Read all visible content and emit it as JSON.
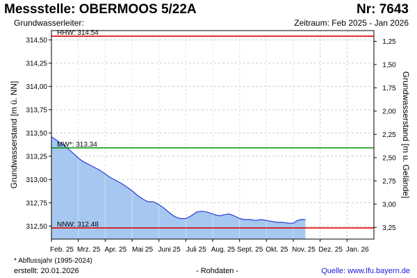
{
  "header": {
    "title": "Messstelle: OBERMOOS 5/22A",
    "number": "Nr: 7643",
    "aquifer_label": "Grundwasserleiter:",
    "period": "Zeitraum: Feb 2025 - Jan 2026"
  },
  "footer": {
    "footnote": "* Abflussjahr (1995-2024)",
    "created": "erstellt:  20.01.2026",
    "raw": "- Rohdaten -",
    "source": "Quelle:  www.lfu.bayern.de"
  },
  "colors": {
    "hhw": "#e00000",
    "mw": "#009000",
    "nnw": "#e00000",
    "fill": "#a6c8f0",
    "line": "#2a3ad8",
    "grid": "#cccccc"
  },
  "chart_data": {
    "type": "area",
    "ylabel": "Grundwasserstand [m ü. NN]",
    "y2label": "Grundwasserstand [m u. Gelände]",
    "ylim": [
      312.36,
      314.6
    ],
    "yticks": [
      "312,50",
      "312,75",
      "313,00",
      "313,25",
      "313,50",
      "313,75",
      "314,00",
      "314,25",
      "314,50"
    ],
    "y2ticks": [
      "1,25",
      "1,50",
      "1,75",
      "2,00",
      "2,25",
      "2,50",
      "2,75",
      "3,00",
      "3,25"
    ],
    "xlim": [
      0,
      12
    ],
    "xticks": [
      "Feb. 25",
      "Mrz. 25",
      "Apr. 25",
      "Mai 25",
      "Juni 25",
      "Juli 25",
      "Aug. 25",
      "Sept. 25",
      "Okt. 25",
      "Nov. 25",
      "Dez. 25",
      "Jan. 26"
    ],
    "grid": true,
    "reference_lines": [
      {
        "label": "HHW: 314.54",
        "value": 314.54,
        "color": "#e00000"
      },
      {
        "label": "MW*: 313.34",
        "value": 313.34,
        "color": "#009000"
      },
      {
        "label": "NNW: 312.48",
        "value": 312.48,
        "color": "#e00000"
      }
    ],
    "series": [
      {
        "x": [
          0.0,
          0.15,
          0.3,
          0.5,
          0.7,
          0.9,
          1.0,
          1.2,
          1.4,
          1.6,
          1.8,
          2.0,
          2.2,
          2.4,
          2.6,
          2.8,
          3.0,
          3.2,
          3.4,
          3.6,
          3.8,
          4.0,
          4.2,
          4.4,
          4.6,
          4.8,
          5.0,
          5.2,
          5.4,
          5.6,
          5.8,
          6.0,
          6.1,
          6.25,
          6.4,
          6.6,
          6.8,
          7.0,
          7.2,
          7.4,
          7.6,
          7.8,
          8.0,
          8.2,
          8.4,
          8.6,
          8.8,
          9.0,
          9.15,
          9.3,
          9.4,
          9.45
        ],
        "values": [
          313.46,
          313.43,
          313.4,
          313.36,
          313.31,
          313.26,
          313.23,
          313.19,
          313.16,
          313.13,
          313.1,
          313.06,
          313.02,
          312.99,
          312.96,
          312.92,
          312.88,
          312.83,
          312.79,
          312.76,
          312.76,
          312.73,
          312.69,
          312.64,
          312.6,
          312.58,
          312.58,
          312.61,
          312.65,
          312.66,
          312.65,
          312.63,
          312.62,
          312.61,
          312.62,
          312.63,
          312.61,
          312.58,
          312.57,
          312.57,
          312.56,
          312.57,
          312.56,
          312.55,
          312.54,
          312.54,
          312.53,
          312.53,
          312.56,
          312.57,
          312.57,
          312.57
        ]
      }
    ]
  }
}
